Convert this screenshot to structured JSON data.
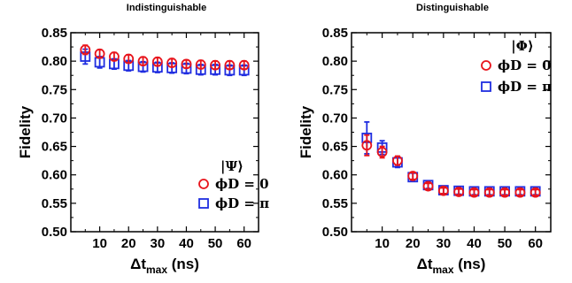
{
  "chart_data": [
    {
      "type": "scatter",
      "title": "Indistinguishable",
      "xlabel": "Δt_max (ns)",
      "xlabel_main": "Δt",
      "xlabel_sub": "max",
      "xlabel_unit": " (ns)",
      "ylabel": "Fidelity",
      "xlim": [
        0,
        65
      ],
      "ylim": [
        0.5,
        0.85
      ],
      "xticks": [
        10,
        20,
        30,
        40,
        50,
        60
      ],
      "yticks": [
        0.5,
        0.55,
        0.6,
        0.65,
        0.7,
        0.75,
        0.8,
        0.85
      ],
      "ytick_labels": [
        "0.50",
        "0.55",
        "0.60",
        "0.65",
        "0.70",
        "0.75",
        "0.80",
        "0.85"
      ],
      "legend_position": "bottom-right",
      "legend_title": "|Ψ⟩",
      "grid": false,
      "x": [
        5,
        10,
        15,
        20,
        25,
        30,
        35,
        40,
        45,
        50,
        55,
        60
      ],
      "series": [
        {
          "name": "ϕD = 0",
          "marker": "circle",
          "color": "#e8141c",
          "values": [
            0.82,
            0.813,
            0.808,
            0.804,
            0.8,
            0.799,
            0.797,
            0.795,
            0.794,
            0.793,
            0.793,
            0.793
          ],
          "errors": [
            0.008,
            0.007,
            0.007,
            0.007,
            0.007,
            0.007,
            0.007,
            0.007,
            0.007,
            0.007,
            0.007,
            0.007
          ]
        },
        {
          "name": "ϕD = π",
          "marker": "square",
          "color": "#1f2de0",
          "values": [
            0.808,
            0.798,
            0.795,
            0.792,
            0.79,
            0.789,
            0.788,
            0.787,
            0.785,
            0.785,
            0.784,
            0.784
          ],
          "errors": [
            0.013,
            0.01,
            0.009,
            0.009,
            0.009,
            0.009,
            0.009,
            0.009,
            0.009,
            0.009,
            0.009,
            0.009
          ]
        }
      ]
    },
    {
      "type": "scatter",
      "title": "Distinguishable",
      "xlabel": "Δt_max (ns)",
      "xlabel_main": "Δt",
      "xlabel_sub": "max",
      "xlabel_unit": " (ns)",
      "ylabel": "Fidelity",
      "xlim": [
        0,
        65
      ],
      "ylim": [
        0.5,
        0.85
      ],
      "xticks": [
        10,
        20,
        30,
        40,
        50,
        60
      ],
      "yticks": [
        0.5,
        0.55,
        0.6,
        0.65,
        0.7,
        0.75,
        0.8,
        0.85
      ],
      "ytick_labels": [
        "0.50",
        "0.55",
        "0.60",
        "0.65",
        "0.70",
        "0.75",
        "0.80",
        "0.85"
      ],
      "legend_position": "top-right",
      "legend_title": "|Φ⟩",
      "grid": false,
      "x": [
        5,
        10,
        15,
        20,
        25,
        30,
        35,
        40,
        45,
        50,
        55,
        60
      ],
      "series": [
        {
          "name": "ϕD = 0",
          "marker": "circle",
          "color": "#e8141c",
          "values": [
            0.652,
            0.64,
            0.625,
            0.598,
            0.58,
            0.572,
            0.57,
            0.569,
            0.569,
            0.569,
            0.569,
            0.569
          ],
          "errors": [
            0.018,
            0.01,
            0.008,
            0.006,
            0.005,
            0.005,
            0.005,
            0.005,
            0.005,
            0.005,
            0.005,
            0.005
          ]
        },
        {
          "name": "ϕD = π",
          "marker": "square",
          "color": "#1f2de0",
          "values": [
            0.665,
            0.648,
            0.622,
            0.596,
            0.582,
            0.573,
            0.572,
            0.571,
            0.571,
            0.571,
            0.571,
            0.571
          ],
          "errors": [
            0.028,
            0.012,
            0.009,
            0.007,
            0.006,
            0.006,
            0.006,
            0.006,
            0.006,
            0.006,
            0.006,
            0.006
          ]
        }
      ]
    }
  ]
}
